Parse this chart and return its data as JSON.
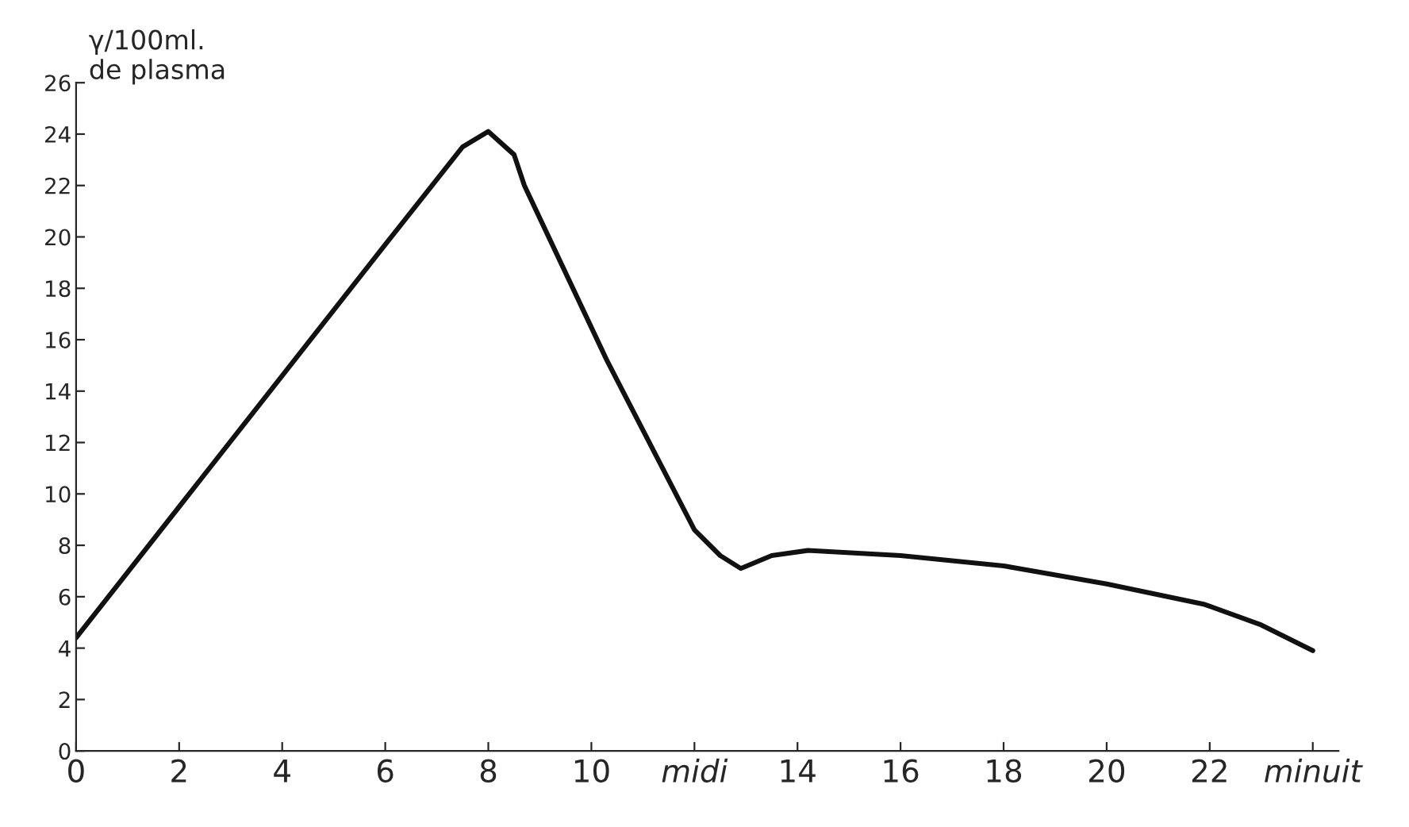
{
  "chart_data": {
    "type": "line",
    "ylabel": "γ/100ml.\nde plasma",
    "x": [
      0,
      2,
      4,
      6,
      7.5,
      8.0,
      8.5,
      8.7,
      10.3,
      12.0,
      12.5,
      12.9,
      13.5,
      14.2,
      16.0,
      18.0,
      20.0,
      21.9,
      23.0,
      24.0
    ],
    "series": [
      {
        "color": "#111111",
        "values": [
          4.4,
          9.5,
          14.6,
          19.7,
          23.5,
          24.1,
          23.2,
          22.0,
          15.2,
          8.6,
          7.6,
          7.1,
          7.6,
          7.8,
          7.6,
          7.2,
          6.5,
          5.7,
          4.9,
          3.9
        ]
      }
    ],
    "xlim": [
      0,
      24.5
    ],
    "ylim": [
      0,
      26
    ],
    "xticks": [
      0,
      2,
      4,
      6,
      8,
      10,
      {
        "value": 12,
        "label": "midi"
      },
      14,
      16,
      18,
      20,
      22,
      {
        "value": 24,
        "label": "minuit"
      }
    ],
    "yticks": [
      0,
      2,
      4,
      6,
      8,
      10,
      12,
      14,
      16,
      18,
      20,
      22,
      24,
      26
    ],
    "grid": false,
    "legend": false,
    "marker": "none",
    "line_style": "solid"
  }
}
